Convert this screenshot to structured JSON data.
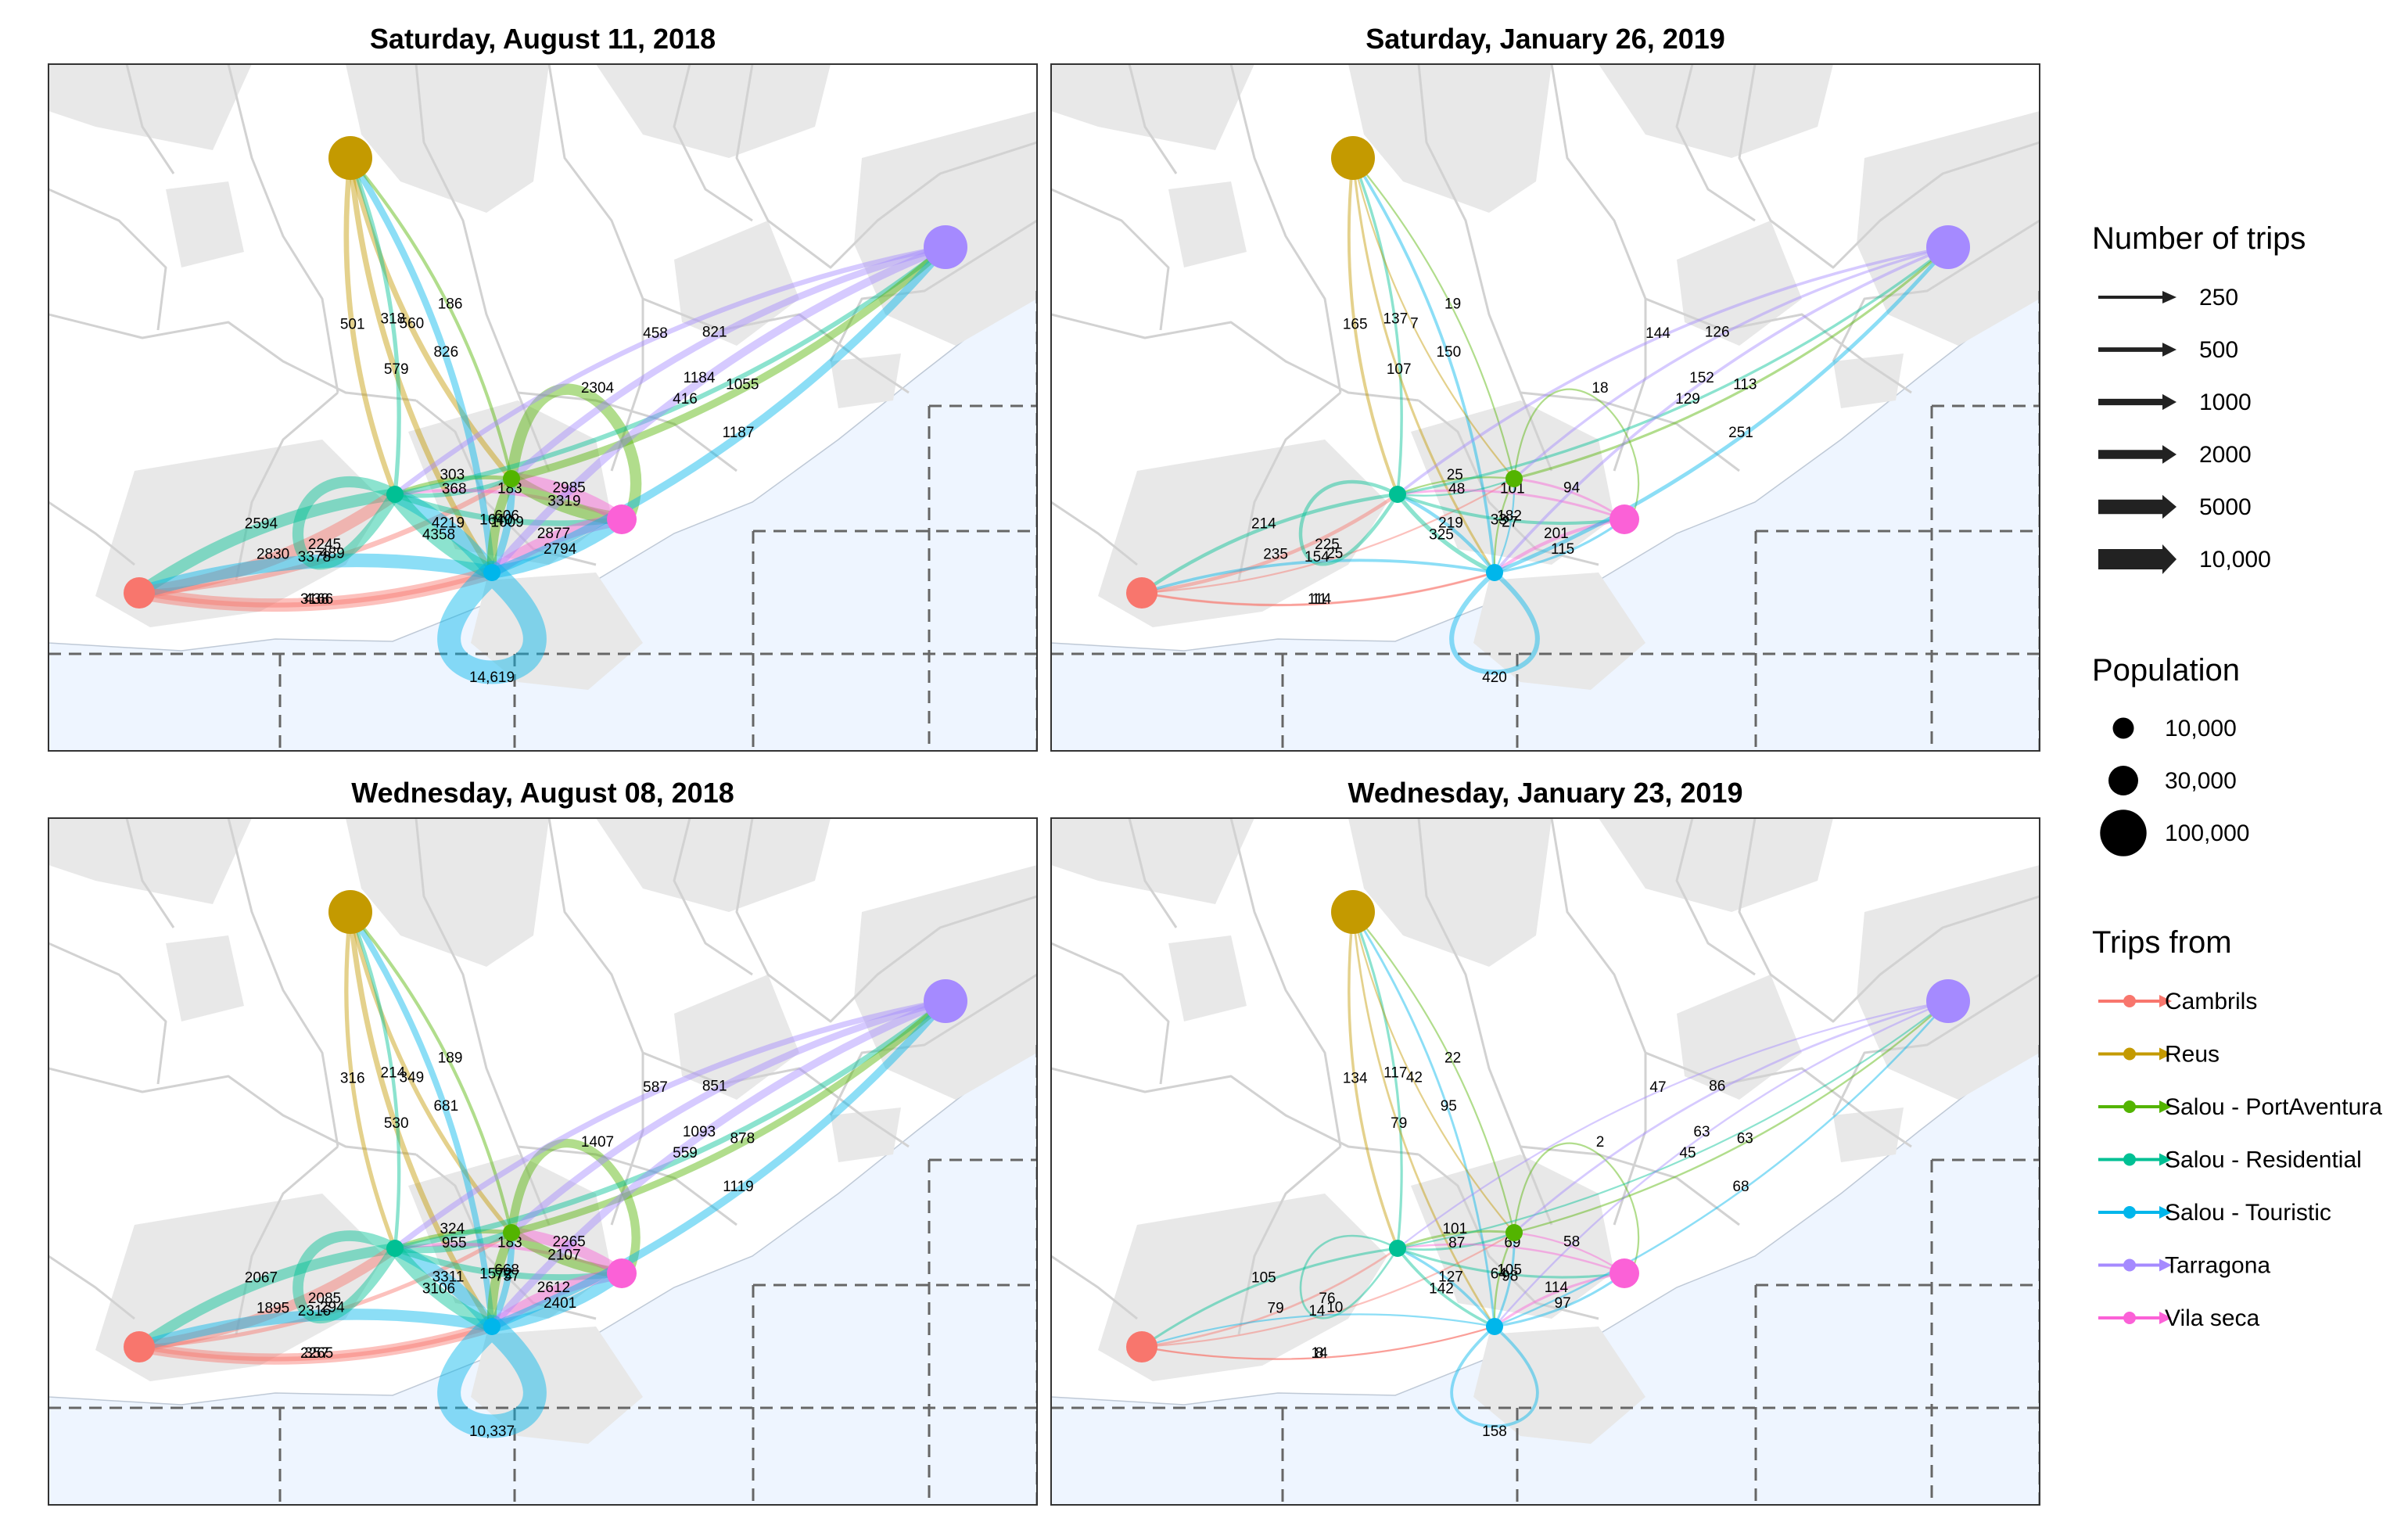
{
  "colors": {
    "Cambrils": "#F8766D",
    "Reus": "#C49A00",
    "Salou - PortAventura": "#53B400",
    "Salou - Residential": "#00C094",
    "Salou - Touristic": "#00B6EB",
    "Tarragona": "#A58AFF",
    "Vila seca": "#FB61D7",
    "sea": "#EEF5FF",
    "land": "#E8E8E8",
    "borders": "#D2D2D2",
    "grid": "#666666"
  },
  "panels": [
    {
      "title": "Saturday, August 11, 2018",
      "edges": [
        {
          "from": "Reus",
          "to": "Salou - Residential",
          "label": "501",
          "trips": 501
        },
        {
          "from": "Reus",
          "to": "Salou - PortAventura",
          "label": "560",
          "trips": 560
        },
        {
          "from": "Reus",
          "to": "Salou - Touristic",
          "label": "579",
          "trips": 579
        },
        {
          "from": "Salou - Touristic",
          "to": "Reus",
          "label": "826",
          "trips": 826
        },
        {
          "from": "Salou - PortAventura",
          "to": "Reus",
          "label": "186",
          "trips": 186
        },
        {
          "from": "Salou - Residential",
          "to": "Reus",
          "label": "318",
          "trips": 318
        },
        {
          "from": "Cambrils",
          "to": "Salou - PortAventura",
          "label": "489",
          "trips": 489
        },
        {
          "from": "Cambrils",
          "to": "Salou - Touristic",
          "label": "438",
          "trips": 438
        },
        {
          "from": "Salou - Residential",
          "to": "Cambrils",
          "label": "2594",
          "trips": 2594
        },
        {
          "from": "Cambrils",
          "to": "Salou - Residential",
          "label": "2830",
          "trips": 2830
        },
        {
          "from": "Salou - Touristic",
          "to": "Cambrils",
          "label": "3378",
          "trips": 3378
        },
        {
          "from": "Cambrils",
          "to": "Salou - Touristic",
          "label": "3166",
          "trips": 3166
        },
        {
          "from": "Salou - Residential",
          "to": "Salou - Residential",
          "label": "2245",
          "trips": 2245
        },
        {
          "from": "Salou - Touristic",
          "to": "Salou - Residential",
          "label": "4219",
          "trips": 4219
        },
        {
          "from": "Salou - Residential",
          "to": "Salou - Touristic",
          "label": "4358",
          "trips": 4358
        },
        {
          "from": "Salou - PortAventura",
          "to": "Salou - Residential",
          "label": "303",
          "trips": 303
        },
        {
          "from": "Salou - Residential",
          "to": "Salou - PortAventura",
          "label": "368",
          "trips": 368
        },
        {
          "from": "Salou - Touristic",
          "to": "Salou - PortAventura",
          "label": "1009",
          "trips": 1009
        },
        {
          "from": "Salou - PortAventura",
          "to": "Salou - Touristic",
          "label": "1640",
          "trips": 1640
        },
        {
          "from": "Salou - Residential",
          "to": "Vila seca",
          "label": "606",
          "trips": 606
        },
        {
          "from": "Vila seca",
          "to": "Salou - Residential",
          "label": "183",
          "trips": 183
        },
        {
          "from": "Salou - PortAventura",
          "to": "Vila seca",
          "label": "3319",
          "trips": 3319
        },
        {
          "from": "Vila seca",
          "to": "Salou - PortAventura",
          "label": "2985",
          "trips": 2985
        },
        {
          "from": "Vila seca",
          "to": "Salou - Touristic",
          "label": "2877",
          "trips": 2877
        },
        {
          "from": "Salou - Touristic",
          "to": "Vila seca",
          "label": "2794",
          "trips": 2794
        },
        {
          "from": "Salou - PortAventura",
          "to": "Salou - PortAventura",
          "label": "2304",
          "trips": 2304
        },
        {
          "from": "Tarragona",
          "to": "Salou - Residential",
          "label": "458",
          "trips": 458
        },
        {
          "from": "Salou - Residential",
          "to": "Tarragona",
          "label": "416",
          "trips": 416
        },
        {
          "from": "Tarragona",
          "to": "Salou - PortAventura",
          "label": "821",
          "trips": 821
        },
        {
          "from": "Salou - PortAventura",
          "to": "Tarragona",
          "label": "1055",
          "trips": 1055
        },
        {
          "from": "Tarragona",
          "to": "Salou - Touristic",
          "label": "1184",
          "trips": 1184
        },
        {
          "from": "Salou - Touristic",
          "to": "Tarragona",
          "label": "1187",
          "trips": 1187
        },
        {
          "from": "Salou - Touristic",
          "to": "Salou - Touristic",
          "label": "14,619",
          "trips": 14619
        }
      ]
    },
    {
      "title": "Saturday, January 26, 2019",
      "edges": [
        {
          "from": "Reus",
          "to": "Salou - Residential",
          "label": "165",
          "trips": 165
        },
        {
          "from": "Salou - Residential",
          "to": "Reus",
          "label": "137",
          "trips": 137
        },
        {
          "from": "Reus",
          "to": "Salou - Touristic",
          "label": "107",
          "trips": 107
        },
        {
          "from": "Salou - Touristic",
          "to": "Reus",
          "label": "150",
          "trips": 150
        },
        {
          "from": "Reus",
          "to": "Salou - PortAventura",
          "label": "7",
          "trips": 7
        },
        {
          "from": "Salou - PortAventura",
          "to": "Reus",
          "label": "19",
          "trips": 19
        },
        {
          "from": "Cambrils",
          "to": "Salou - PortAventura",
          "label": "25",
          "trips": 25
        },
        {
          "from": "Cambrils",
          "to": "Salou - Touristic",
          "label": "11",
          "trips": 11
        },
        {
          "from": "Salou - Residential",
          "to": "Cambrils",
          "label": "214",
          "trips": 214
        },
        {
          "from": "Cambrils",
          "to": "Salou - Residential",
          "label": "235",
          "trips": 235
        },
        {
          "from": "Salou - Touristic",
          "to": "Cambrils",
          "label": "154",
          "trips": 154
        },
        {
          "from": "Cambrils",
          "to": "Salou - Touristic",
          "label": "114",
          "trips": 114
        },
        {
          "from": "Salou - Residential",
          "to": "Salou - Residential",
          "label": "225",
          "trips": 225
        },
        {
          "from": "Salou - Touristic",
          "to": "Salou - Residential",
          "label": "219",
          "trips": 219
        },
        {
          "from": "Salou - Residential",
          "to": "Salou - Touristic",
          "label": "325",
          "trips": 325
        },
        {
          "from": "Salou - PortAventura",
          "to": "Salou - Residential",
          "label": "25",
          "trips": 25
        },
        {
          "from": "Salou - Residential",
          "to": "Salou - PortAventura",
          "label": "48",
          "trips": 48
        },
        {
          "from": "Salou - Touristic",
          "to": "Salou - PortAventura",
          "label": "27",
          "trips": 27
        },
        {
          "from": "Salou - PortAventura",
          "to": "Salou - Touristic",
          "label": "33",
          "trips": 33
        },
        {
          "from": "Salou - Residential",
          "to": "Vila seca",
          "label": "182",
          "trips": 182
        },
        {
          "from": "Vila seca",
          "to": "Salou - Residential",
          "label": "101",
          "trips": 101
        },
        {
          "from": "Vila seca",
          "to": "Salou - PortAventura",
          "label": "94",
          "trips": 94
        },
        {
          "from": "Vila seca",
          "to": "Salou - Touristic",
          "label": "201",
          "trips": 201
        },
        {
          "from": "Salou - Touristic",
          "to": "Vila seca",
          "label": "115",
          "trips": 115
        },
        {
          "from": "Salou - PortAventura",
          "to": "Salou - PortAventura",
          "label": "18",
          "trips": 18
        },
        {
          "from": "Tarragona",
          "to": "Salou - Residential",
          "label": "144",
          "trips": 144
        },
        {
          "from": "Salou - Residential",
          "to": "Tarragona",
          "label": "129",
          "trips": 129
        },
        {
          "from": "Tarragona",
          "to": "Salou - PortAventura",
          "label": "126",
          "trips": 126
        },
        {
          "from": "Salou - PortAventura",
          "to": "Tarragona",
          "label": "113",
          "trips": 113
        },
        {
          "from": "Tarragona",
          "to": "Salou - Touristic",
          "label": "152",
          "trips": 152
        },
        {
          "from": "Salou - Touristic",
          "to": "Tarragona",
          "label": "251",
          "trips": 251
        },
        {
          "from": "Salou - Touristic",
          "to": "Salou - Touristic",
          "label": "420",
          "trips": 420
        }
      ]
    },
    {
      "title": "Wednesday, August 08, 2018",
      "edges": [
        {
          "from": "Reus",
          "to": "Salou - Residential",
          "label": "316",
          "trips": 316
        },
        {
          "from": "Reus",
          "to": "Salou - PortAventura",
          "label": "349",
          "trips": 349
        },
        {
          "from": "Reus",
          "to": "Salou - Touristic",
          "label": "530",
          "trips": 530
        },
        {
          "from": "Salou - Touristic",
          "to": "Reus",
          "label": "681",
          "trips": 681
        },
        {
          "from": "Salou - PortAventura",
          "to": "Reus",
          "label": "189",
          "trips": 189
        },
        {
          "from": "Salou - Residential",
          "to": "Reus",
          "label": "214",
          "trips": 214
        },
        {
          "from": "Cambrils",
          "to": "Salou - PortAventura",
          "label": "294",
          "trips": 294
        },
        {
          "from": "Cambrils",
          "to": "Salou - Touristic",
          "label": "357",
          "trips": 357
        },
        {
          "from": "Salou - Residential",
          "to": "Cambrils",
          "label": "2067",
          "trips": 2067
        },
        {
          "from": "Cambrils",
          "to": "Salou - Residential",
          "label": "1895",
          "trips": 1895
        },
        {
          "from": "Salou - Touristic",
          "to": "Cambrils",
          "label": "2316",
          "trips": 2316
        },
        {
          "from": "Cambrils",
          "to": "Salou - Touristic",
          "label": "2265",
          "trips": 2265
        },
        {
          "from": "Salou - Residential",
          "to": "Salou - Residential",
          "label": "2085",
          "trips": 2085
        },
        {
          "from": "Salou - Touristic",
          "to": "Salou - Residential",
          "label": "3311",
          "trips": 3311
        },
        {
          "from": "Salou - Residential",
          "to": "Salou - Touristic",
          "label": "3106",
          "trips": 3106
        },
        {
          "from": "Salou - PortAventura",
          "to": "Salou - Residential",
          "label": "324",
          "trips": 324
        },
        {
          "from": "Salou - Residential",
          "to": "Salou - PortAventura",
          "label": "955",
          "trips": 955
        },
        {
          "from": "Salou - Touristic",
          "to": "Salou - PortAventura",
          "label": "757",
          "trips": 757
        },
        {
          "from": "Salou - PortAventura",
          "to": "Salou - Touristic",
          "label": "1572",
          "trips": 1572
        },
        {
          "from": "Salou - Residential",
          "to": "Vila seca",
          "label": "668",
          "trips": 668
        },
        {
          "from": "Vila seca",
          "to": "Salou - Residential",
          "label": "183",
          "trips": 183
        },
        {
          "from": "Salou - PortAventura",
          "to": "Vila seca",
          "label": "2107",
          "trips": 2107
        },
        {
          "from": "Vila seca",
          "to": "Salou - PortAventura",
          "label": "2265",
          "trips": 2265
        },
        {
          "from": "Vila seca",
          "to": "Salou - Touristic",
          "label": "2612",
          "trips": 2612
        },
        {
          "from": "Salou - Touristic",
          "to": "Vila seca",
          "label": "2401",
          "trips": 2401
        },
        {
          "from": "Salou - PortAventura",
          "to": "Salou - PortAventura",
          "label": "1407",
          "trips": 1407
        },
        {
          "from": "Tarragona",
          "to": "Salou - Residential",
          "label": "587",
          "trips": 587
        },
        {
          "from": "Salou - Residential",
          "to": "Tarragona",
          "label": "559",
          "trips": 559
        },
        {
          "from": "Tarragona",
          "to": "Salou - PortAventura",
          "label": "851",
          "trips": 851
        },
        {
          "from": "Salou - PortAventura",
          "to": "Tarragona",
          "label": "878",
          "trips": 878
        },
        {
          "from": "Tarragona",
          "to": "Salou - Touristic",
          "label": "1093",
          "trips": 1093
        },
        {
          "from": "Salou - Touristic",
          "to": "Tarragona",
          "label": "1119",
          "trips": 1119
        },
        {
          "from": "Salou - Touristic",
          "to": "Salou - Touristic",
          "label": "10,337",
          "trips": 10337
        }
      ]
    },
    {
      "title": "Wednesday, January 23, 2019",
      "edges": [
        {
          "from": "Reus",
          "to": "Salou - Residential",
          "label": "134",
          "trips": 134
        },
        {
          "from": "Salou - Residential",
          "to": "Reus",
          "label": "117",
          "trips": 117
        },
        {
          "from": "Reus",
          "to": "Salou - Touristic",
          "label": "79",
          "trips": 79
        },
        {
          "from": "Salou - Touristic",
          "to": "Reus",
          "label": "95",
          "trips": 95
        },
        {
          "from": "Reus",
          "to": "Salou - PortAventura",
          "label": "42",
          "trips": 42
        },
        {
          "from": "Salou - PortAventura",
          "to": "Reus",
          "label": "22",
          "trips": 22
        },
        {
          "from": "Cambrils",
          "to": "Salou - PortAventura",
          "label": "10",
          "trips": 10
        },
        {
          "from": "Cambrils",
          "to": "Salou - Touristic",
          "label": "8",
          "trips": 8
        },
        {
          "from": "Salou - Residential",
          "to": "Cambrils",
          "label": "105",
          "trips": 105
        },
        {
          "from": "Cambrils",
          "to": "Salou - Residential",
          "label": "79",
          "trips": 79
        },
        {
          "from": "Salou - Touristic",
          "to": "Cambrils",
          "label": "14",
          "trips": 14
        },
        {
          "from": "Cambrils",
          "to": "Salou - Touristic",
          "label": "14",
          "trips": 14
        },
        {
          "from": "Salou - Residential",
          "to": "Salou - Residential",
          "label": "76",
          "trips": 76
        },
        {
          "from": "Salou - Touristic",
          "to": "Salou - Residential",
          "label": "127",
          "trips": 127
        },
        {
          "from": "Salou - Residential",
          "to": "Salou - Touristic",
          "label": "142",
          "trips": 142
        },
        {
          "from": "Salou - PortAventura",
          "to": "Salou - Residential",
          "label": "101",
          "trips": 101
        },
        {
          "from": "Salou - Residential",
          "to": "Salou - PortAventura",
          "label": "87",
          "trips": 87
        },
        {
          "from": "Salou - Touristic",
          "to": "Salou - PortAventura",
          "label": "98",
          "trips": 98
        },
        {
          "from": "Salou - PortAventura",
          "to": "Salou - Touristic",
          "label": "64",
          "trips": 64
        },
        {
          "from": "Salou - Residential",
          "to": "Vila seca",
          "label": "105",
          "trips": 105
        },
        {
          "from": "Vila seca",
          "to": "Salou - Residential",
          "label": "69",
          "trips": 69
        },
        {
          "from": "Vila seca",
          "to": "Salou - PortAventura",
          "label": "58",
          "trips": 58
        },
        {
          "from": "Vila seca",
          "to": "Salou - Touristic",
          "label": "114",
          "trips": 114
        },
        {
          "from": "Salou - Touristic",
          "to": "Vila seca",
          "label": "97",
          "trips": 97
        },
        {
          "from": "Salou - PortAventura",
          "to": "Salou - PortAventura",
          "label": "2",
          "trips": 2
        },
        {
          "from": "Tarragona",
          "to": "Salou - Residential",
          "label": "47",
          "trips": 47
        },
        {
          "from": "Salou - Residential",
          "to": "Tarragona",
          "label": "45",
          "trips": 45
        },
        {
          "from": "Tarragona",
          "to": "Salou - PortAventura",
          "label": "86",
          "trips": 86
        },
        {
          "from": "Salou - PortAventura",
          "to": "Tarragona",
          "label": "63",
          "trips": 63
        },
        {
          "from": "Tarragona",
          "to": "Salou - Touristic",
          "label": "63",
          "trips": 63
        },
        {
          "from": "Salou - Touristic",
          "to": "Tarragona",
          "label": "68",
          "trips": 68
        },
        {
          "from": "Salou - Touristic",
          "to": "Salou - Touristic",
          "label": "158",
          "trips": 158
        }
      ]
    }
  ],
  "legend": {
    "trips_title": "Number of trips",
    "trips_items": [
      {
        "label": "250",
        "value": 250
      },
      {
        "label": "500",
        "value": 500
      },
      {
        "label": "1000",
        "value": 1000
      },
      {
        "label": "2000",
        "value": 2000
      },
      {
        "label": "5000",
        "value": 5000
      },
      {
        "label": "10,000",
        "value": 10000
      }
    ],
    "population_title": "Population",
    "population_items": [
      {
        "label": "10,000",
        "value": 10000
      },
      {
        "label": "30,000",
        "value": 30000
      },
      {
        "label": "100,000",
        "value": 100000
      }
    ],
    "from_title": "Trips from",
    "from_items": [
      "Cambrils",
      "Reus",
      "Salou - PortAventura",
      "Salou - Residential",
      "Salou - Touristic",
      "Tarragona",
      "Vila seca"
    ]
  }
}
